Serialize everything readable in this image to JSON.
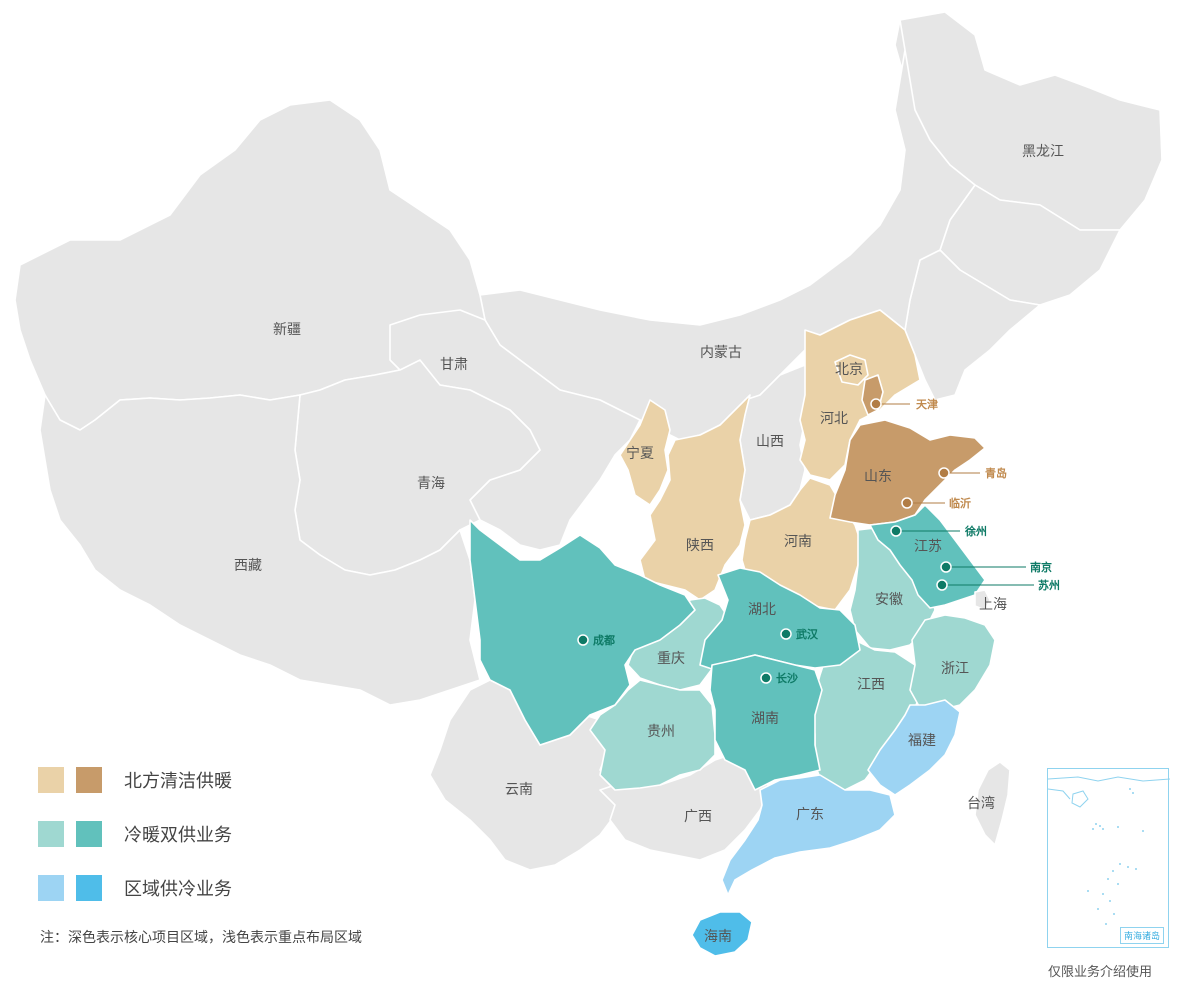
{
  "colors": {
    "base": "#e6e6e6",
    "north_light": "#ead2a8",
    "north_dark": "#c79b6a",
    "dual_light": "#9fd8d1",
    "dual_dark": "#61c1bc",
    "cool_light": "#9dd4f3",
    "cool_dark": "#4fbde9",
    "city_north": "#b27d45",
    "city_dual": "#0e7a66"
  },
  "provinces": {
    "heilongjiang": "黑龙江",
    "xinjiang": "新疆",
    "gansu": "甘肃",
    "neimenggu": "内蒙古",
    "beijing": "北京",
    "hebei": "河北",
    "shanxi": "山西",
    "ningxia": "宁夏",
    "qinghai": "青海",
    "shandong": "山东",
    "xizang": "西藏",
    "shaanxi": "陕西",
    "henan": "河南",
    "jiangsu": "江苏",
    "shanghai": "上海",
    "anhui": "安徽",
    "hubei": "湖北",
    "chongqing": "重庆",
    "zhejiang": "浙江",
    "jiangxi": "江西",
    "hunan": "湖南",
    "guizhou": "贵州",
    "fujian": "福建",
    "yunnan": "云南",
    "taiwan": "台湾",
    "guangxi": "广西",
    "guangdong": "广东",
    "hainan": "海南"
  },
  "cities": {
    "tianjin": "天津",
    "qingdao": "青岛",
    "linyi": "临沂",
    "xuzhou": "徐州",
    "nanjing": "南京",
    "suzhou": "苏州",
    "chengdu": "成都",
    "wuhan": "武汉",
    "changsha": "长沙"
  },
  "legend": [
    {
      "label": "北方清洁供暖",
      "light": "north_light",
      "dark": "north_dark"
    },
    {
      "label": "冷暖双供业务",
      "light": "dual_light",
      "dark": "dual_dark"
    },
    {
      "label": "区域供冷业务",
      "light": "cool_light",
      "dark": "cool_dark"
    }
  ],
  "note": "注：深色表示核心项目区域，浅色表示重点布局区域",
  "inset_label": "南海诸岛",
  "disclaimer": "仅限业务介绍使用"
}
